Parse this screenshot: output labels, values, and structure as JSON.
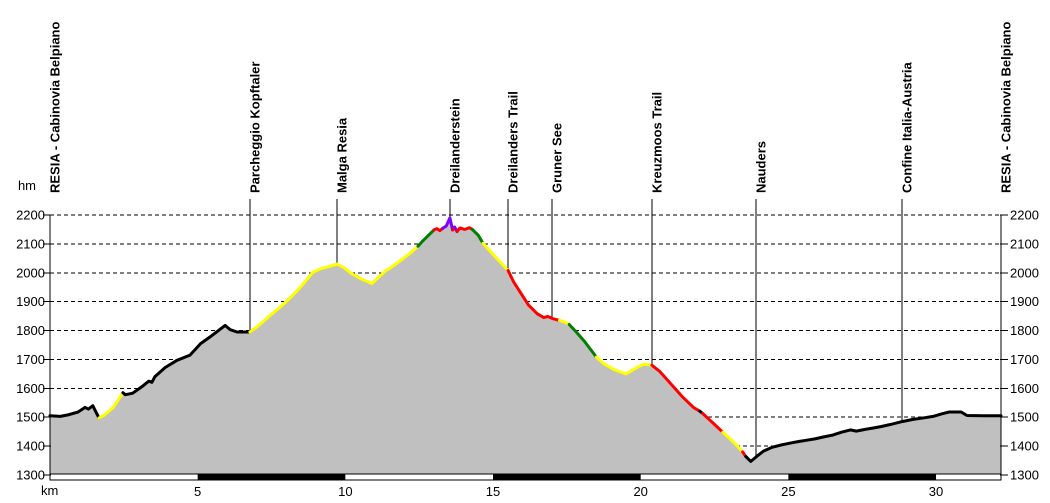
{
  "chart_data": {
    "type": "area",
    "title": "",
    "xlabel": "km",
    "ylabel": "hm",
    "xlim": [
      0,
      32.2
    ],
    "ylim": [
      1300,
      2200
    ],
    "x_ticks": [
      5,
      10,
      15,
      20,
      25,
      30
    ],
    "y_ticks": [
      1300,
      1400,
      1500,
      1600,
      1700,
      1800,
      1900,
      2000,
      2100,
      2200
    ],
    "grid": "horizontal-dashed",
    "legend": "none",
    "area_fill": "#c0c0c0",
    "scalebar_interval_km": 5,
    "colors": {
      "k": "#000000",
      "y": "#ffff00",
      "r": "#ff0000",
      "g": "#008000",
      "p": "#7f00ff"
    },
    "summary": {
      "start_m": 1505,
      "max_m": 2190,
      "min_m": 1347,
      "end_m": 1505
    },
    "waypoints": [
      {
        "label": "RESIA - Cabinovia Belpiano",
        "km": 0,
        "line": false
      },
      {
        "label": "Parcheggio Kopftaler",
        "km": 6.77,
        "line": true
      },
      {
        "label": "Malga Resia",
        "km": 9.72,
        "line": true
      },
      {
        "label": "Dreilanderstein",
        "km": 13.54,
        "line": true
      },
      {
        "label": "Dreilanders Trail",
        "km": 15.51,
        "line": true
      },
      {
        "label": "Gruner See",
        "km": 17.0,
        "line": true
      },
      {
        "label": "Kreuzmoos Trail",
        "km": 20.38,
        "line": true
      },
      {
        "label": "Nauders",
        "km": 23.9,
        "line": true
      },
      {
        "label": "Confine Italia-Austria",
        "km": 28.85,
        "line": true
      },
      {
        "label": "RESIA - Cabinovia Belpiano",
        "km": 32.2,
        "line": false
      }
    ],
    "profile": [
      [
        0,
        1505,
        null
      ],
      [
        0.35,
        1503,
        "k"
      ],
      [
        0.65,
        1509,
        "k"
      ],
      [
        0.95,
        1518,
        "k"
      ],
      [
        1.19,
        1534,
        "k"
      ],
      [
        1.3,
        1528,
        "k"
      ],
      [
        1.45,
        1540,
        "k"
      ],
      [
        1.66,
        1497,
        "k"
      ],
      [
        1.85,
        1508,
        "y"
      ],
      [
        2.15,
        1535,
        "y"
      ],
      [
        2.47,
        1585,
        "y"
      ],
      [
        2.55,
        1578,
        "k"
      ],
      [
        2.8,
        1583,
        "k"
      ],
      [
        3.1,
        1605,
        "k"
      ],
      [
        3.35,
        1625,
        "k"
      ],
      [
        3.45,
        1621,
        "k"
      ],
      [
        3.55,
        1640,
        "k"
      ],
      [
        3.9,
        1672,
        "k"
      ],
      [
        4.3,
        1697,
        "k"
      ],
      [
        4.74,
        1715,
        "k"
      ],
      [
        5.1,
        1755,
        "k"
      ],
      [
        5.42,
        1778,
        "k"
      ],
      [
        5.93,
        1818,
        "k"
      ],
      [
        6.1,
        1803,
        "k"
      ],
      [
        6.33,
        1795,
        "k"
      ],
      [
        6.77,
        1795,
        "k"
      ],
      [
        7.0,
        1812,
        "y"
      ],
      [
        7.4,
        1848,
        "y"
      ],
      [
        7.8,
        1882,
        "y"
      ],
      [
        8.13,
        1913,
        "y"
      ],
      [
        8.5,
        1952,
        "y"
      ],
      [
        8.9,
        2002,
        "y"
      ],
      [
        9.2,
        2015,
        "y"
      ],
      [
        9.5,
        2023,
        "y"
      ],
      [
        9.72,
        2030,
        "y"
      ],
      [
        9.95,
        2018,
        "y"
      ],
      [
        10.2,
        1998,
        "y"
      ],
      [
        10.55,
        1978,
        "y"
      ],
      [
        10.9,
        1963,
        "y"
      ],
      [
        11.1,
        1982,
        "y"
      ],
      [
        11.35,
        2006,
        "y"
      ],
      [
        11.6,
        2022,
        "y"
      ],
      [
        11.9,
        2045,
        "y"
      ],
      [
        12.2,
        2068,
        "y"
      ],
      [
        12.46,
        2092,
        "y"
      ],
      [
        12.6,
        2108,
        "g"
      ],
      [
        12.8,
        2128,
        "g"
      ],
      [
        13.0,
        2148,
        "g"
      ],
      [
        13.1,
        2153,
        "r"
      ],
      [
        13.2,
        2146,
        "r"
      ],
      [
        13.3,
        2154,
        "r"
      ],
      [
        13.42,
        2162,
        "p"
      ],
      [
        13.54,
        2190,
        "p"
      ],
      [
        13.63,
        2148,
        "p"
      ],
      [
        13.7,
        2158,
        "r"
      ],
      [
        13.78,
        2143,
        "p"
      ],
      [
        13.88,
        2155,
        "r"
      ],
      [
        14.05,
        2150,
        "r"
      ],
      [
        14.2,
        2156,
        "r"
      ],
      [
        14.3,
        2150,
        "r"
      ],
      [
        14.5,
        2130,
        "g"
      ],
      [
        14.66,
        2102,
        "g"
      ],
      [
        14.9,
        2075,
        "y"
      ],
      [
        15.2,
        2042,
        "y"
      ],
      [
        15.51,
        2008,
        "y"
      ],
      [
        15.7,
        1968,
        "r"
      ],
      [
        15.95,
        1928,
        "r"
      ],
      [
        16.2,
        1888,
        "r"
      ],
      [
        16.5,
        1858,
        "r"
      ],
      [
        16.72,
        1845,
        "r"
      ],
      [
        16.85,
        1849,
        "r"
      ],
      [
        17.0,
        1842,
        "r"
      ],
      [
        17.25,
        1835,
        "r"
      ],
      [
        17.42,
        1830,
        "y"
      ],
      [
        17.58,
        1821,
        "y"
      ],
      [
        17.8,
        1797,
        "g"
      ],
      [
        18.1,
        1762,
        "g"
      ],
      [
        18.5,
        1708,
        "g"
      ],
      [
        18.75,
        1685,
        "y"
      ],
      [
        19.1,
        1665,
        "y"
      ],
      [
        19.5,
        1650,
        "y"
      ],
      [
        19.8,
        1668,
        "y"
      ],
      [
        20.1,
        1684,
        "y"
      ],
      [
        20.38,
        1680,
        "y"
      ],
      [
        20.65,
        1658,
        "r"
      ],
      [
        21.0,
        1618,
        "r"
      ],
      [
        21.4,
        1572,
        "r"
      ],
      [
        21.8,
        1533,
        "r"
      ],
      [
        22.0,
        1521,
        "r"
      ],
      [
        22.1,
        1513,
        "k"
      ],
      [
        22.45,
        1480,
        "r"
      ],
      [
        22.78,
        1448,
        "r"
      ],
      [
        23.0,
        1428,
        "y"
      ],
      [
        23.2,
        1408,
        "y"
      ],
      [
        23.45,
        1380,
        "y"
      ],
      [
        23.56,
        1364,
        "r"
      ],
      [
        23.73,
        1347,
        "k"
      ],
      [
        23.9,
        1362,
        "k"
      ],
      [
        24.15,
        1382,
        "k"
      ],
      [
        24.45,
        1396,
        "k"
      ],
      [
        24.75,
        1404,
        "k"
      ],
      [
        25.05,
        1410,
        "k"
      ],
      [
        25.35,
        1416,
        "k"
      ],
      [
        25.6,
        1420,
        "k"
      ],
      [
        25.9,
        1425,
        "k"
      ],
      [
        26.2,
        1432,
        "k"
      ],
      [
        26.5,
        1438,
        "k"
      ],
      [
        26.8,
        1448,
        "k"
      ],
      [
        27.1,
        1456,
        "k"
      ],
      [
        27.3,
        1452,
        "k"
      ],
      [
        27.6,
        1458,
        "k"
      ],
      [
        27.9,
        1463,
        "k"
      ],
      [
        28.15,
        1468,
        "k"
      ],
      [
        28.5,
        1476,
        "k"
      ],
      [
        28.85,
        1485,
        "k"
      ],
      [
        29.2,
        1492,
        "k"
      ],
      [
        29.6,
        1498,
        "k"
      ],
      [
        29.9,
        1503,
        "k"
      ],
      [
        30.2,
        1512,
        "k"
      ],
      [
        30.45,
        1518,
        "k"
      ],
      [
        30.85,
        1518,
        "k"
      ],
      [
        31.05,
        1506,
        "k"
      ],
      [
        31.6,
        1505,
        "k"
      ],
      [
        32.2,
        1505,
        "k"
      ]
    ]
  }
}
